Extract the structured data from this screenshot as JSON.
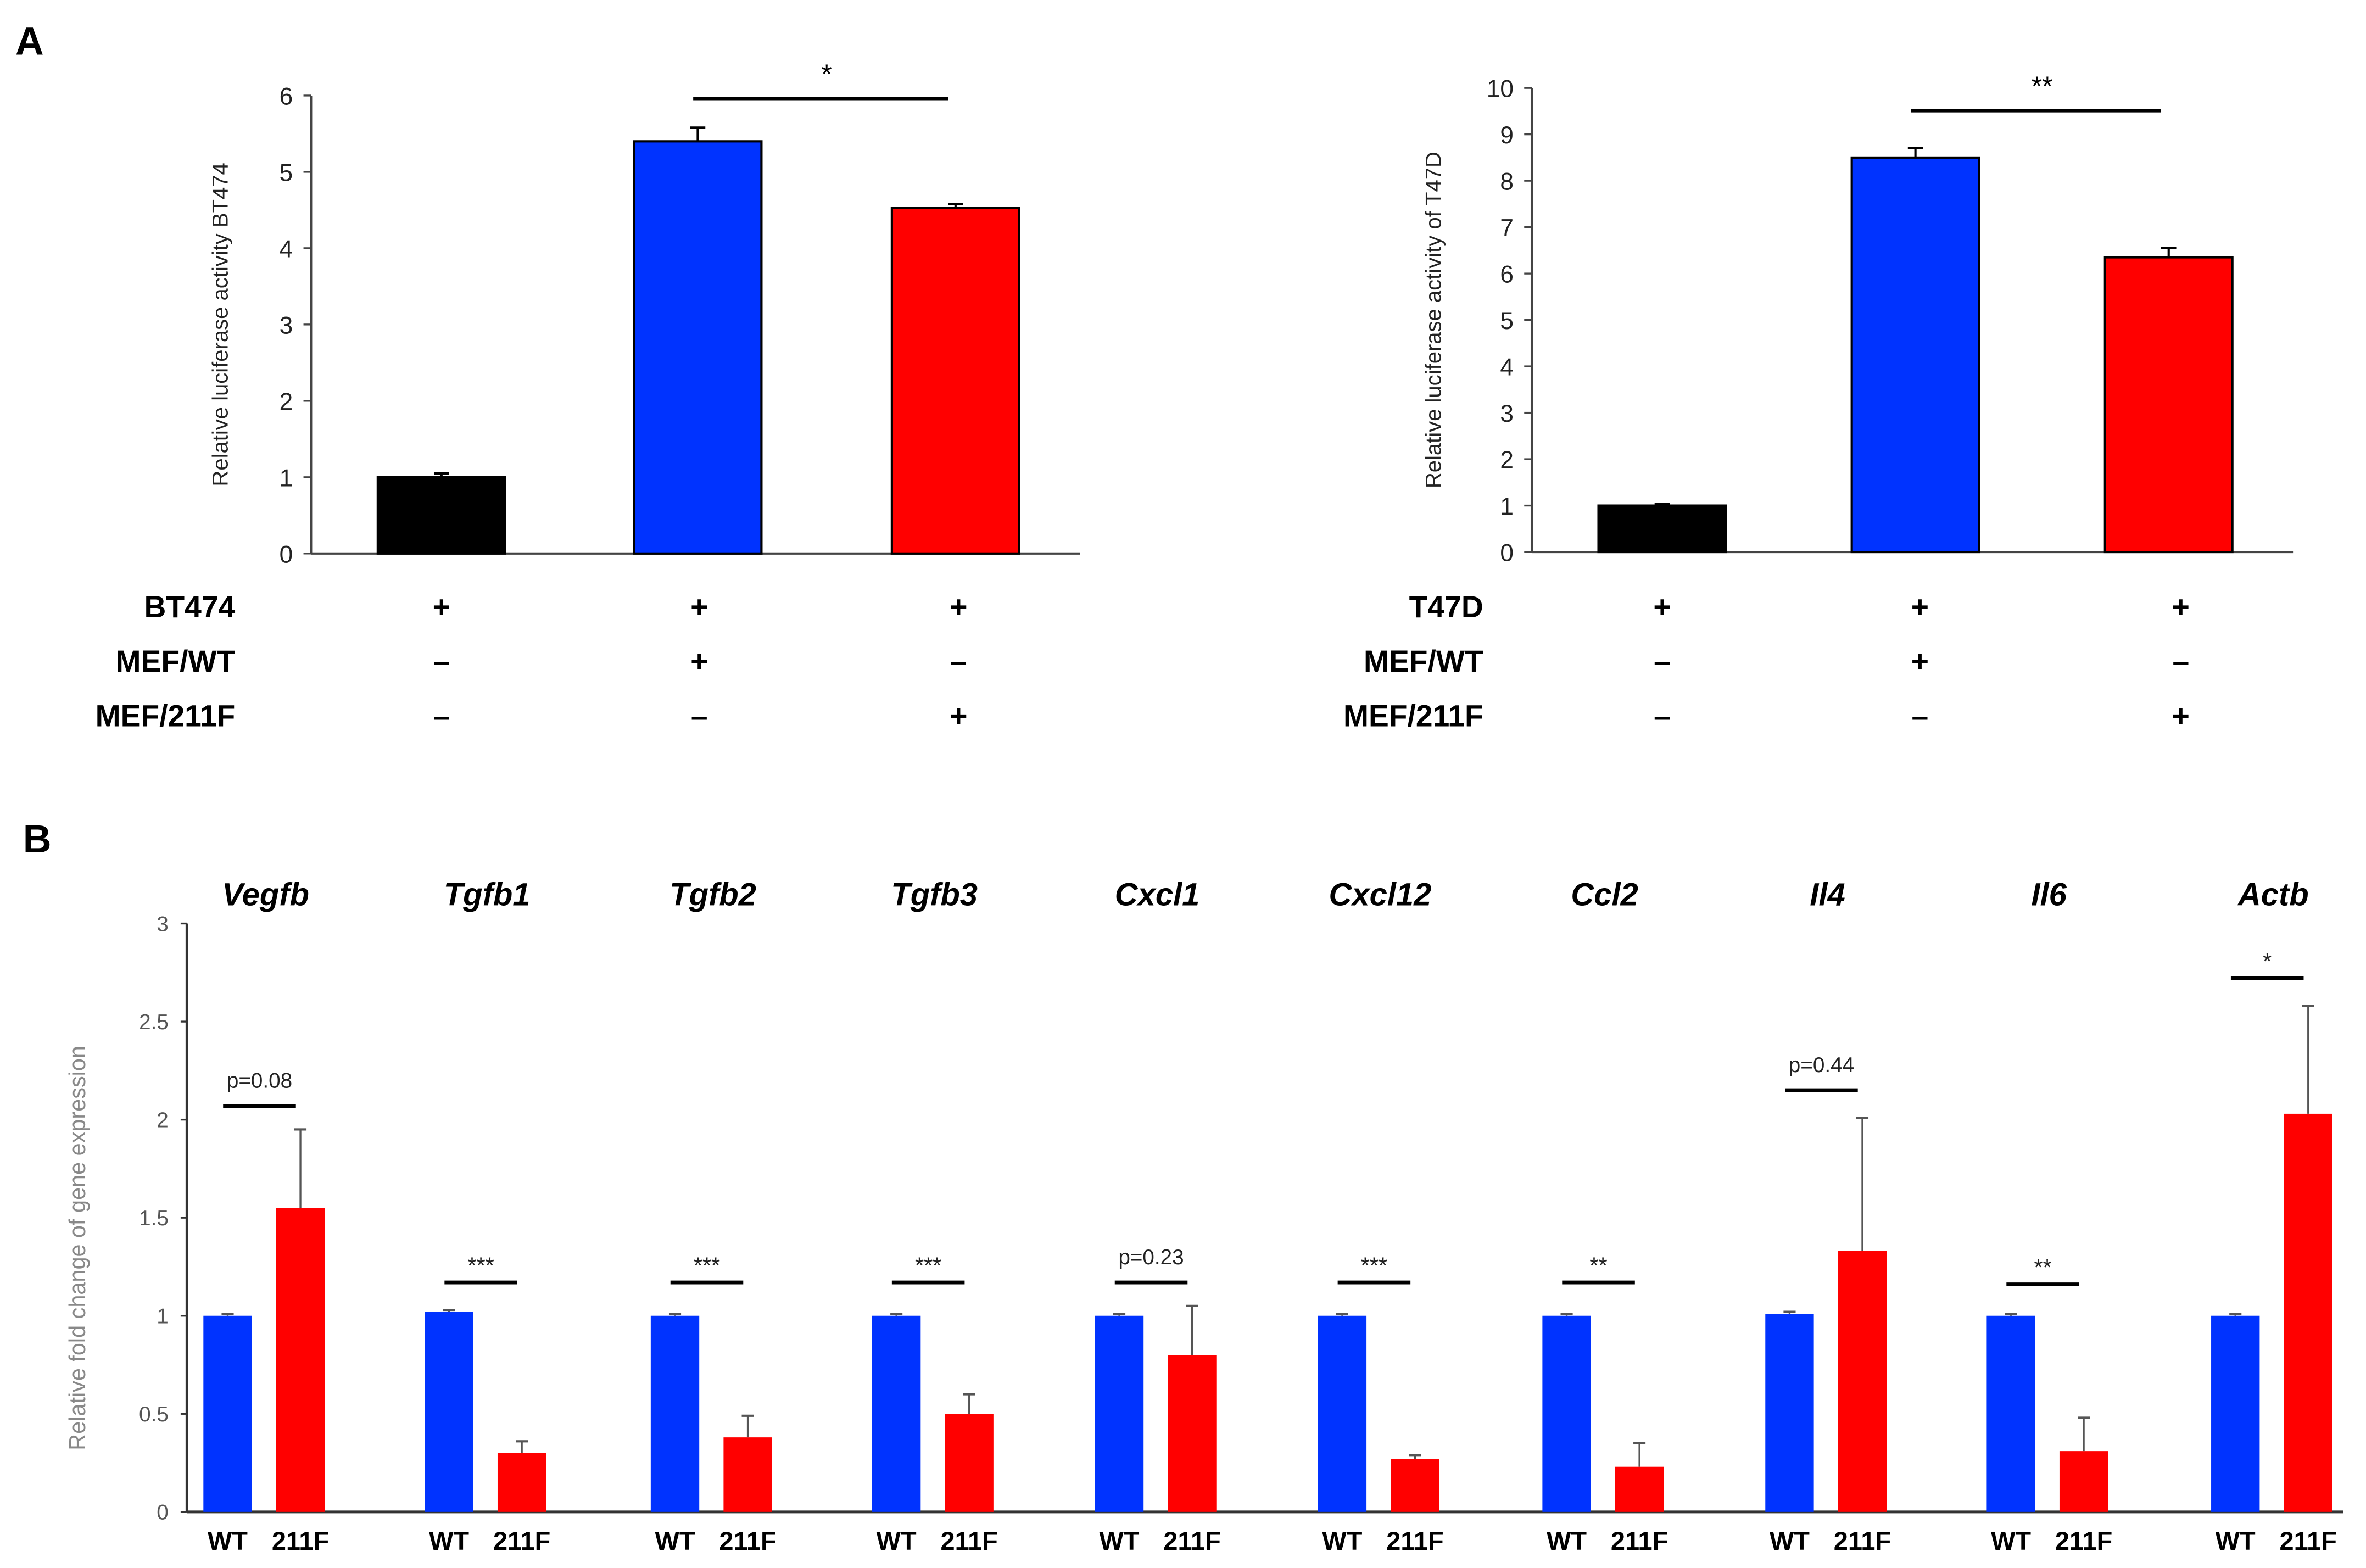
{
  "panel_labels": {
    "a": "A",
    "b": "B"
  },
  "chart_data": [
    {
      "type": "bar",
      "panel": "A",
      "ylabel": "Relative luciferase activity BT474",
      "ylim": [
        0,
        6
      ],
      "yticks": [
        "0",
        "1",
        "2",
        "3",
        "4",
        "5",
        "6"
      ],
      "values": [
        1.0,
        5.4,
        4.53
      ],
      "errors": [
        0.05,
        0.18,
        0.05
      ],
      "colors": [
        "#000000",
        "#0033ff",
        "#ff0000"
      ],
      "significance": {
        "from": 1,
        "to": 2,
        "label": "*"
      },
      "conditions": [
        {
          "label": "BT474",
          "signs": [
            "+",
            "+",
            "+"
          ]
        },
        {
          "label": "MEF/WT",
          "signs": [
            "–",
            "+",
            "–"
          ]
        },
        {
          "label": "MEF/211F",
          "signs": [
            "–",
            "–",
            "+"
          ]
        }
      ]
    },
    {
      "type": "bar",
      "panel": "A",
      "ylabel": "Relative luciferase activity of T47D",
      "ylim": [
        0,
        10
      ],
      "yticks": [
        "0",
        "1",
        "2",
        "3",
        "4",
        "5",
        "6",
        "7",
        "8",
        "9",
        "10"
      ],
      "values": [
        1.0,
        8.5,
        6.35
      ],
      "errors": [
        0.04,
        0.2,
        0.2
      ],
      "colors": [
        "#000000",
        "#0033ff",
        "#ff0000"
      ],
      "significance": {
        "from": 1,
        "to": 2,
        "label": "**"
      },
      "conditions": [
        {
          "label": "T47D",
          "signs": [
            "+",
            "+",
            "+"
          ]
        },
        {
          "label": "MEF/WT",
          "signs": [
            "–",
            "+",
            "–"
          ]
        },
        {
          "label": "MEF/211F",
          "signs": [
            "–",
            "–",
            "+"
          ]
        }
      ]
    },
    {
      "type": "bar",
      "panel": "B",
      "ylabel": "Relative fold change of gene expression",
      "ylim": [
        0,
        3
      ],
      "yticks": [
        "0",
        "0.5",
        "1",
        "1.5",
        "2",
        "2.5",
        "3"
      ],
      "series_labels": [
        "WT",
        "211F"
      ],
      "colors": [
        "#0033ff",
        "#ff0000"
      ],
      "groups": [
        {
          "gene": "Vegfb",
          "wt": 1.0,
          "wt_err": 0.01,
          "mut": 1.55,
          "mut_err": 0.4,
          "sig": "p=0.08",
          "sig_level": 2.07
        },
        {
          "gene": "Tgfb1",
          "wt": 1.02,
          "wt_err": 0.01,
          "mut": 0.3,
          "mut_err": 0.06,
          "sig": "***",
          "sig_level": 1.17
        },
        {
          "gene": "Tgfb2",
          "wt": 1.0,
          "wt_err": 0.01,
          "mut": 0.38,
          "mut_err": 0.11,
          "sig": "***",
          "sig_level": 1.17
        },
        {
          "gene": "Tgfb3",
          "wt": 1.0,
          "wt_err": 0.01,
          "mut": 0.5,
          "mut_err": 0.1,
          "sig": "***",
          "sig_level": 1.17
        },
        {
          "gene": "Cxcl1",
          "wt": 1.0,
          "wt_err": 0.01,
          "mut": 0.8,
          "mut_err": 0.25,
          "sig": "p=0.23",
          "sig_level": 1.17
        },
        {
          "gene": "Cxcl12",
          "wt": 1.0,
          "wt_err": 0.01,
          "mut": 0.27,
          "mut_err": 0.02,
          "sig": "***",
          "sig_level": 1.17
        },
        {
          "gene": "Ccl2",
          "wt": 1.0,
          "wt_err": 0.01,
          "mut": 0.23,
          "mut_err": 0.12,
          "sig": "**",
          "sig_level": 1.17
        },
        {
          "gene": "Il4",
          "wt": 1.01,
          "wt_err": 0.01,
          "mut": 1.33,
          "mut_err": 0.68,
          "sig": "p=0.44",
          "sig_level": 2.15
        },
        {
          "gene": "Il6",
          "wt": 1.0,
          "wt_err": 0.01,
          "mut": 0.31,
          "mut_err": 0.17,
          "sig": "**",
          "sig_level": 1.16
        },
        {
          "gene": "Actb",
          "wt": 1.0,
          "wt_err": 0.01,
          "mut": 2.03,
          "mut_err": 0.55,
          "sig": "*",
          "sig_level": 2.72
        }
      ]
    }
  ]
}
